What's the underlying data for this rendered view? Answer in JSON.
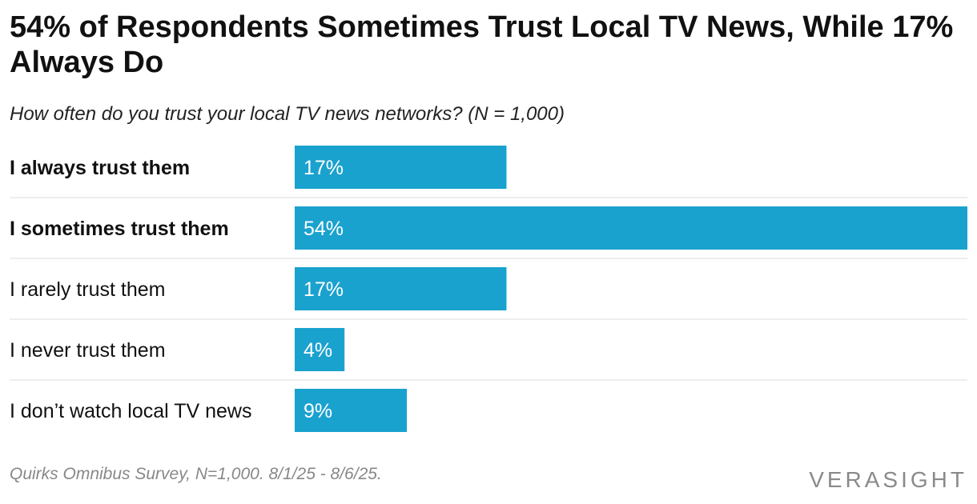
{
  "chart_data": {
    "type": "bar",
    "orientation": "horizontal",
    "title": "54% of Respondents Sometimes Trust Local TV News, While 17% Always Do",
    "subtitle": "How often do you trust your local TV news networks? (N = 1,000)",
    "categories": [
      "I always trust them",
      "I sometimes trust them",
      "I rarely trust them",
      "I never trust them",
      "I don’t watch local TV news"
    ],
    "values": [
      17,
      54,
      17,
      4,
      9
    ],
    "value_labels": [
      "17%",
      "54%",
      "17%",
      "4%",
      "9%"
    ],
    "bold_categories": [
      true,
      true,
      false,
      false,
      false
    ],
    "xlim": [
      0,
      54
    ],
    "bar_color": "#1aa2cf",
    "divider_color": "#dddddd",
    "grid": false,
    "legend": "none"
  },
  "footer": {
    "source": "Quirks Omnibus Survey, N=1,000. 8/1/25 - 8/6/25.",
    "logo": "VERASIGHT"
  }
}
